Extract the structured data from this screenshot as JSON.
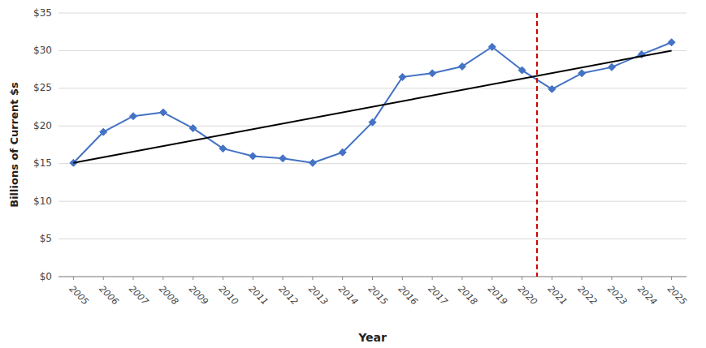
{
  "chart_data": {
    "type": "line",
    "x": [
      2005,
      2006,
      2007,
      2008,
      2009,
      2010,
      2011,
      2012,
      2013,
      2014,
      2015,
      2016,
      2017,
      2018,
      2019,
      2020,
      2021,
      2022,
      2023,
      2024,
      2025
    ],
    "series": [
      {
        "values": [
          15.1,
          19.2,
          21.3,
          21.8,
          19.7,
          17.0,
          16.0,
          15.7,
          15.1,
          16.5,
          20.5,
          26.5,
          27.0,
          27.9,
          30.5,
          27.4,
          24.9,
          27.0,
          27.8,
          29.5,
          31.1
        ],
        "color": "#4472C4",
        "marker": "diamond"
      },
      {
        "x": [
          2005,
          2025
        ],
        "values": [
          15.1,
          30.0
        ],
        "color": "#000000"
      }
    ],
    "reference_lines": [
      {
        "x": 2020.5,
        "color": "#CC0000",
        "line_style": "dashed"
      }
    ],
    "xlabel": "Year",
    "ylabel": "Billions of Current $s",
    "xlim": [
      2004.5,
      2025.5
    ],
    "xticks": [
      2005,
      2006,
      2007,
      2008,
      2009,
      2010,
      2011,
      2012,
      2013,
      2014,
      2015,
      2016,
      2017,
      2018,
      2019,
      2020,
      2021,
      2022,
      2023,
      2024,
      2025
    ],
    "ylim": [
      0,
      35
    ],
    "yticks": [
      {
        "value": 0,
        "label": "$0"
      },
      {
        "value": 5,
        "label": "$5"
      },
      {
        "value": 10,
        "label": "$10"
      },
      {
        "value": 15,
        "label": "$15"
      },
      {
        "value": 20,
        "label": "$20"
      },
      {
        "value": 25,
        "label": "$25"
      },
      {
        "value": 30,
        "label": "$30"
      },
      {
        "value": 35,
        "label": "$35"
      }
    ],
    "grid": "y",
    "background_color": "#ffffff"
  }
}
